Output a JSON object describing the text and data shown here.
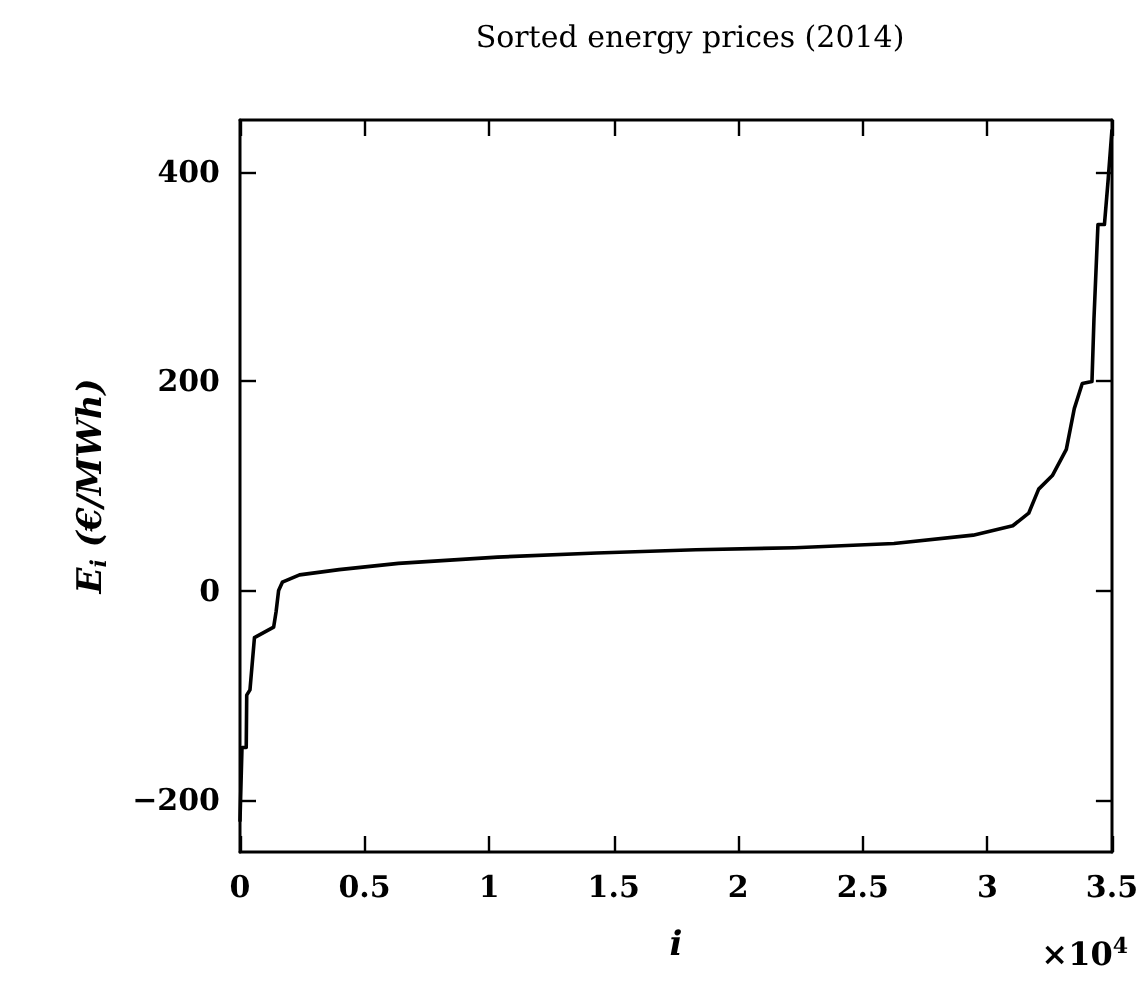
{
  "chart_data": {
    "type": "line",
    "title": "Sorted energy prices (2014)",
    "xlabel": "i",
    "ylabel": "E$_{i}$ (€/MWh)",
    "annotations": [
      "×10$^{4}$"
    ],
    "x": [
      0,
      0.008,
      0.025,
      0.027,
      0.04,
      0.058,
      0.135,
      0.145,
      0.155,
      0.17,
      0.239,
      0.398,
      0.636,
      1.034,
      1.432,
      1.83,
      2.227,
      2.625,
      2.943,
      3.102,
      3.166,
      3.206,
      3.261,
      3.317,
      3.349,
      3.381,
      3.42,
      3.428,
      3.444,
      3.47,
      3.484,
      3.5
    ],
    "series": [
      {
        "color": "#000000",
        "values": [
          -220,
          -150,
          -150,
          -100,
          -95,
          -45,
          -35,
          -20,
          0,
          8,
          15,
          20,
          26,
          32,
          36,
          39,
          41,
          45,
          53,
          62,
          74,
          97,
          110,
          135,
          174,
          198,
          200,
          260,
          350,
          350,
          390,
          440
        ]
      }
    ],
    "xlim": [
      0,
      3.5
    ],
    "ylim": [
      -250,
      450
    ],
    "xticks": [
      0,
      0.5,
      1,
      1.5,
      2,
      2.5,
      3,
      3.5
    ],
    "yticks": [
      {
        "value": -200,
        "label": "−200"
      },
      0,
      200,
      400
    ],
    "marker": "none",
    "line_style": "solid"
  }
}
